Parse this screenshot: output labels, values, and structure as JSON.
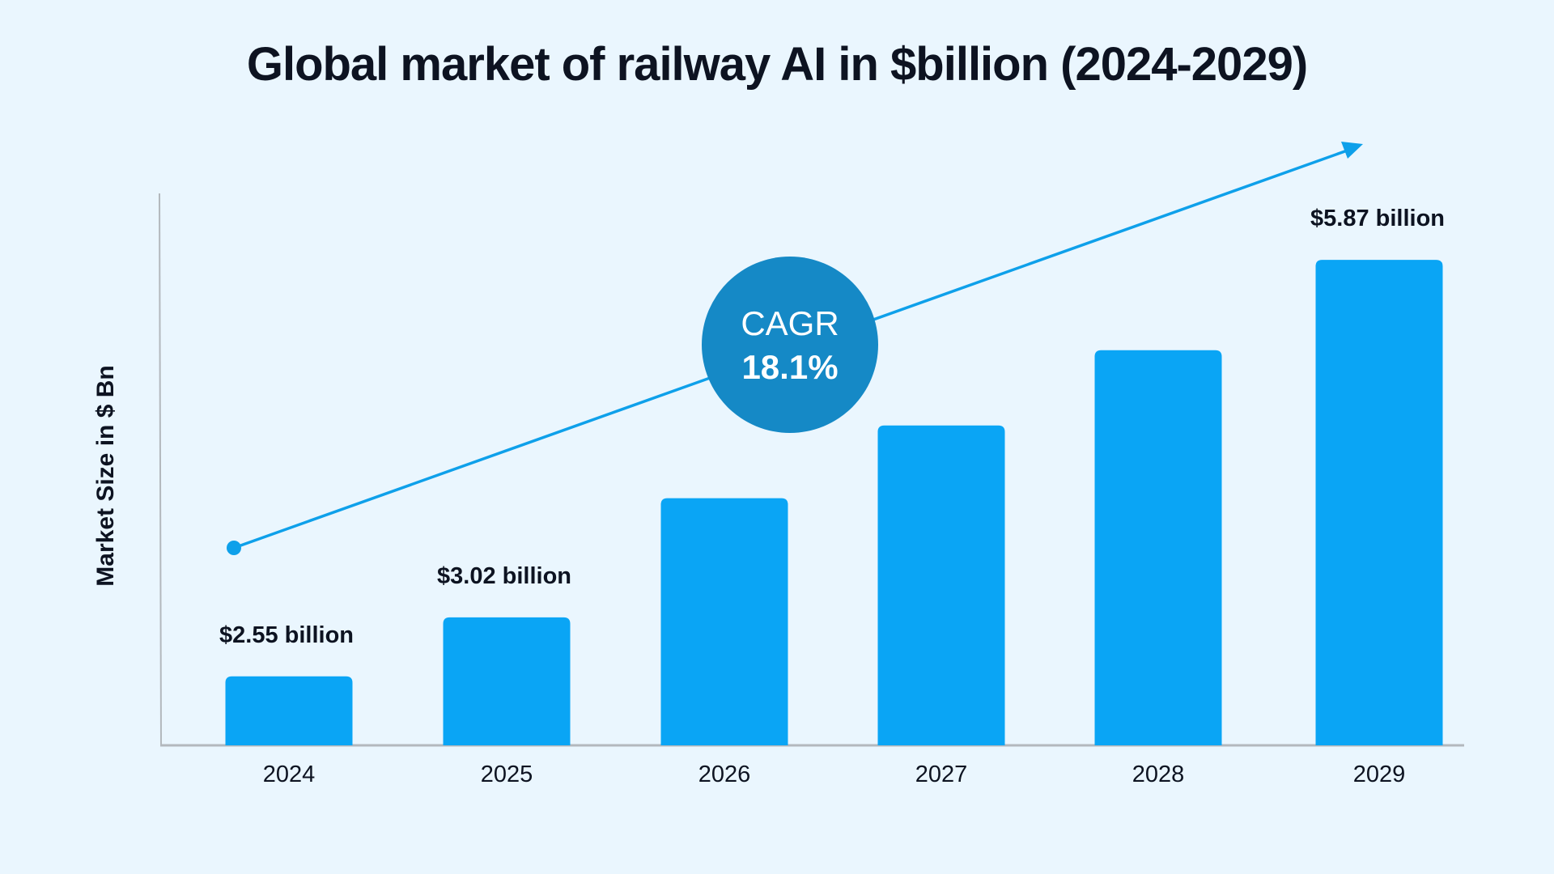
{
  "chart_data": {
    "type": "bar",
    "title": "Global market of railway AI in $billion (2024-2029)",
    "ylabel": "Market Size in $ Bn",
    "xlabel": "",
    "categories": [
      "2024",
      "2025",
      "2026",
      "2027",
      "2028",
      "2029"
    ],
    "values": [
      2.55,
      3.02,
      3.97,
      4.55,
      5.15,
      5.87
    ],
    "data_labels": [
      "$2.55 billion",
      "$3.02 billion",
      "",
      "",
      "",
      "$5.87 billion"
    ],
    "ylim": [
      2,
      6.4
    ],
    "grid": false,
    "annotation": {
      "line1": "CAGR",
      "line2": "18.1%"
    },
    "colors": {
      "bar": "#0aa5f5",
      "trend": "#0ea0ea",
      "badge": "#1589c6",
      "background": "#eaf6fe",
      "axis": "#b3b8bd"
    }
  }
}
